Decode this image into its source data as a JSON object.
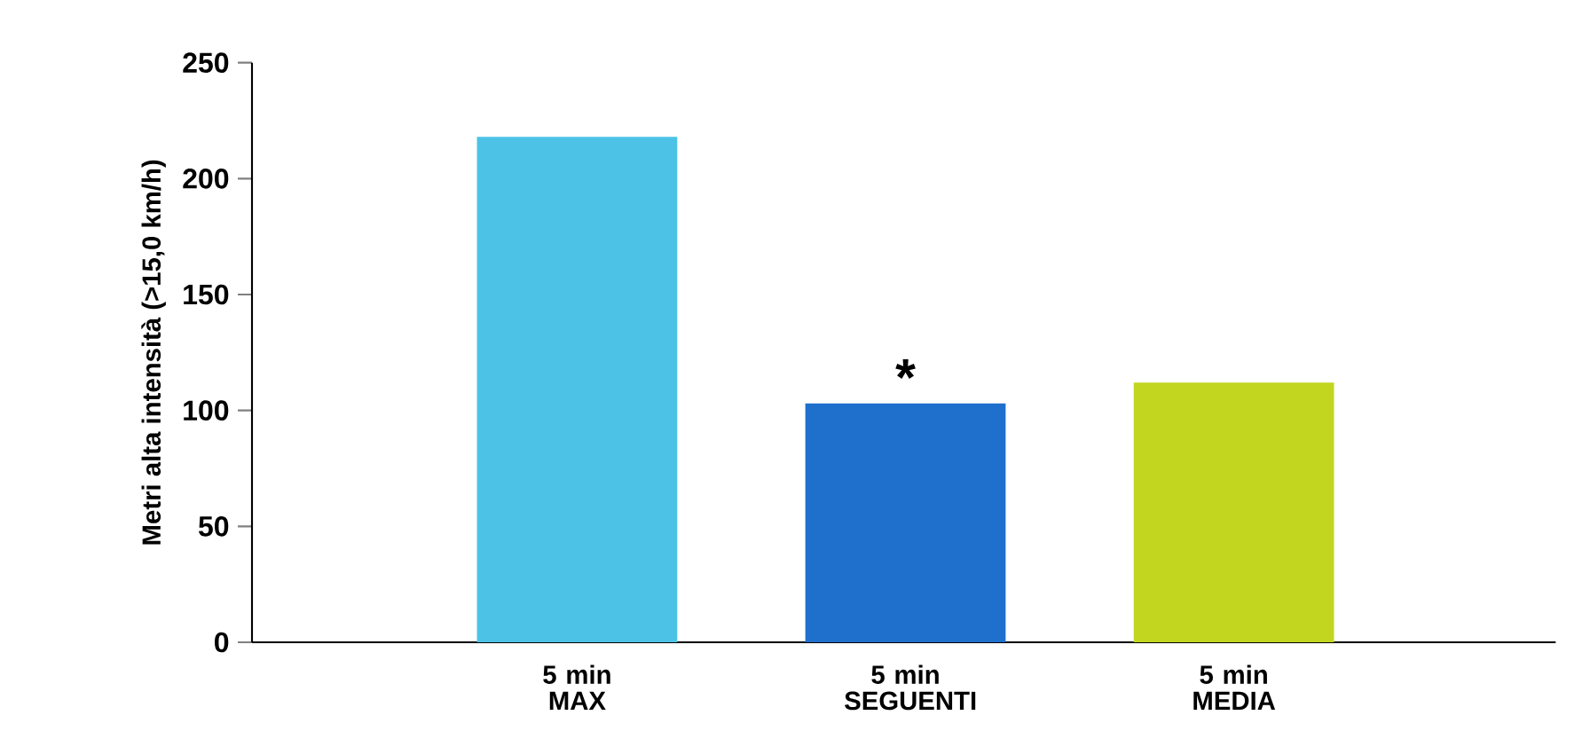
{
  "chart_data": {
    "type": "bar",
    "ylabel": "Metri alta intensità (>15,0 km/h)",
    "categories": [
      "5 min MAX",
      "5 min SEGUENTI",
      "5 min MEDIA"
    ],
    "values": [
      218,
      103,
      112
    ],
    "colors": [
      "#4cc3e6",
      "#1f6fcc",
      "#c2d620"
    ],
    "ylim": [
      0,
      250
    ],
    "yticks": [
      0,
      50,
      100,
      150,
      200,
      250
    ],
    "annotations": [
      {
        "text": "*",
        "x": "5 min SEGUENTI",
        "y": 103
      }
    ],
    "grid": false
  }
}
